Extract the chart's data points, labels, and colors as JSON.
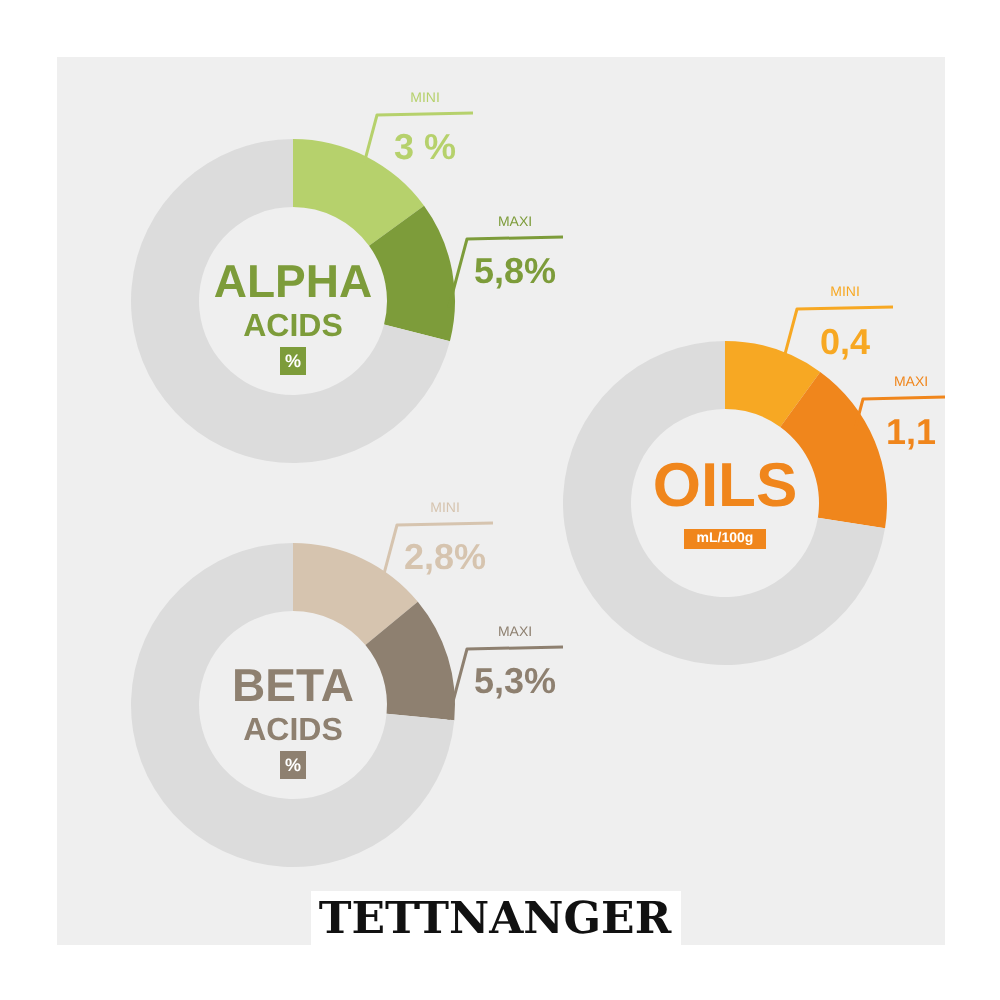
{
  "chart_data": [
    {
      "type": "donut",
      "title": "ALPHA ACIDS",
      "subtitle": "%",
      "values": [
        15,
        14,
        71
      ],
      "colors": [
        "#b6d16c",
        "#7d9c3a",
        "#dcdcdc"
      ],
      "annotations": [
        "MINI",
        "3 %",
        "MAXI",
        "5,8%"
      ]
    },
    {
      "type": "donut",
      "title": "OILS",
      "subtitle": "mL/100g",
      "values": [
        10,
        17.5,
        72.5
      ],
      "colors": [
        "#f7a823",
        "#f0861c",
        "#dcdcdc"
      ],
      "annotations": [
        "MINI",
        "0,4",
        "MAXI",
        "1,1"
      ]
    },
    {
      "type": "donut",
      "title": "BETA ACIDS",
      "subtitle": "%",
      "values": [
        14,
        12.5,
        73.5
      ],
      "colors": [
        "#d6c4af",
        "#8e8070",
        "#dcdcdc"
      ],
      "annotations": [
        "MINI",
        "2,8%",
        "MAXI",
        "5,3%"
      ]
    },
    {
      "type": "other",
      "title": "TETTNANGER"
    }
  ]
}
